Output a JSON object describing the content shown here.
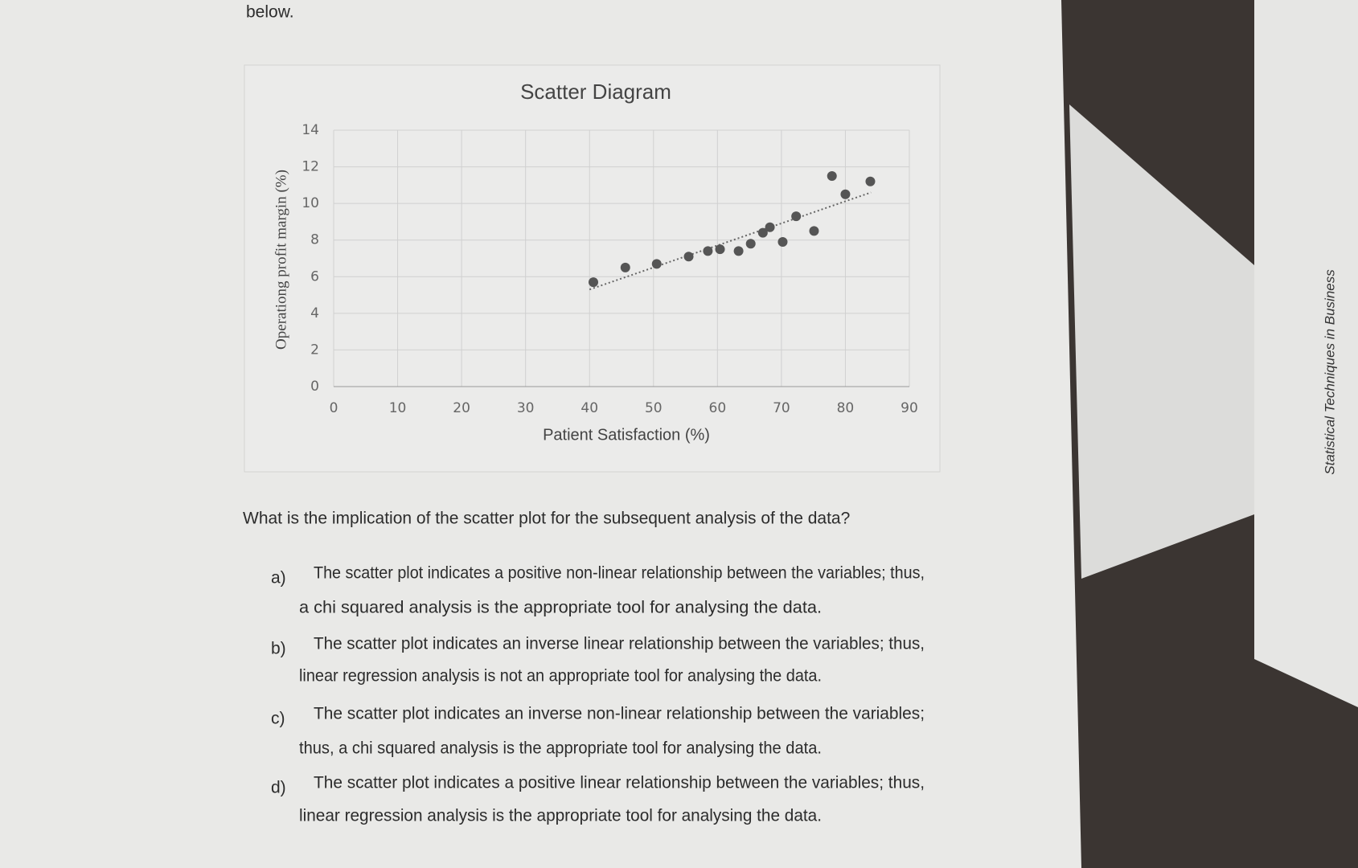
{
  "chart_data": {
    "type": "scatter",
    "title": "Scatter Diagram",
    "x_label": "Patient Satisfaction (%)",
    "y_label": "Operationg profit margin (%)",
    "x": [
      40.6,
      45.6,
      50.5,
      55.5,
      58.5,
      60.4,
      63.3,
      65.2,
      67.1,
      68.2,
      70.2,
      72.3,
      75.1,
      77.9,
      80.0,
      83.9
    ],
    "values": [
      5.7,
      6.5,
      6.7,
      7.1,
      7.4,
      7.5,
      7.4,
      7.8,
      8.4,
      8.7,
      7.9,
      9.3,
      8.5,
      11.5,
      10.5,
      11.2
    ],
    "color": "#555555",
    "trendline": {
      "x": [
        40,
        84
      ],
      "values": [
        5.3,
        10.6
      ],
      "color": "#666666"
    },
    "xlim": [
      0,
      90
    ],
    "xticks": [
      0,
      10,
      20,
      30,
      40,
      50,
      60,
      70,
      80,
      90
    ],
    "ylim": [
      0,
      14
    ],
    "yticks": [
      0,
      2,
      4,
      6,
      8,
      10,
      12,
      14
    ],
    "grid": true
  },
  "document": {
    "intro": "below.",
    "question": "What is the implication of the scatter plot for the subsequent analysis of the data?",
    "options": [
      {
        "letter": "a)",
        "lines": [
          "The scatter plot indicates a positive non-linear relationship between the variables; thus,",
          "a chi squared analysis is the appropriate tool for analysing the data."
        ]
      },
      {
        "letter": "b)",
        "lines": [
          "The scatter plot indicates an inverse linear relationship between the variables; thus,",
          "linear regression analysis is not an appropriate tool for analysing the data."
        ]
      },
      {
        "letter": "c)",
        "lines": [
          "The scatter plot indicates an inverse non-linear relationship between the variables;",
          "thus, a chi squared analysis is the appropriate tool for analysing the data."
        ]
      },
      {
        "letter": "d)",
        "lines": [
          "The scatter plot indicates a positive linear relationship between the variables; thus,",
          "linear regression analysis is the appropriate tool for analysing the data."
        ]
      }
    ],
    "book_spine": "Statistical Techniques in Business"
  }
}
